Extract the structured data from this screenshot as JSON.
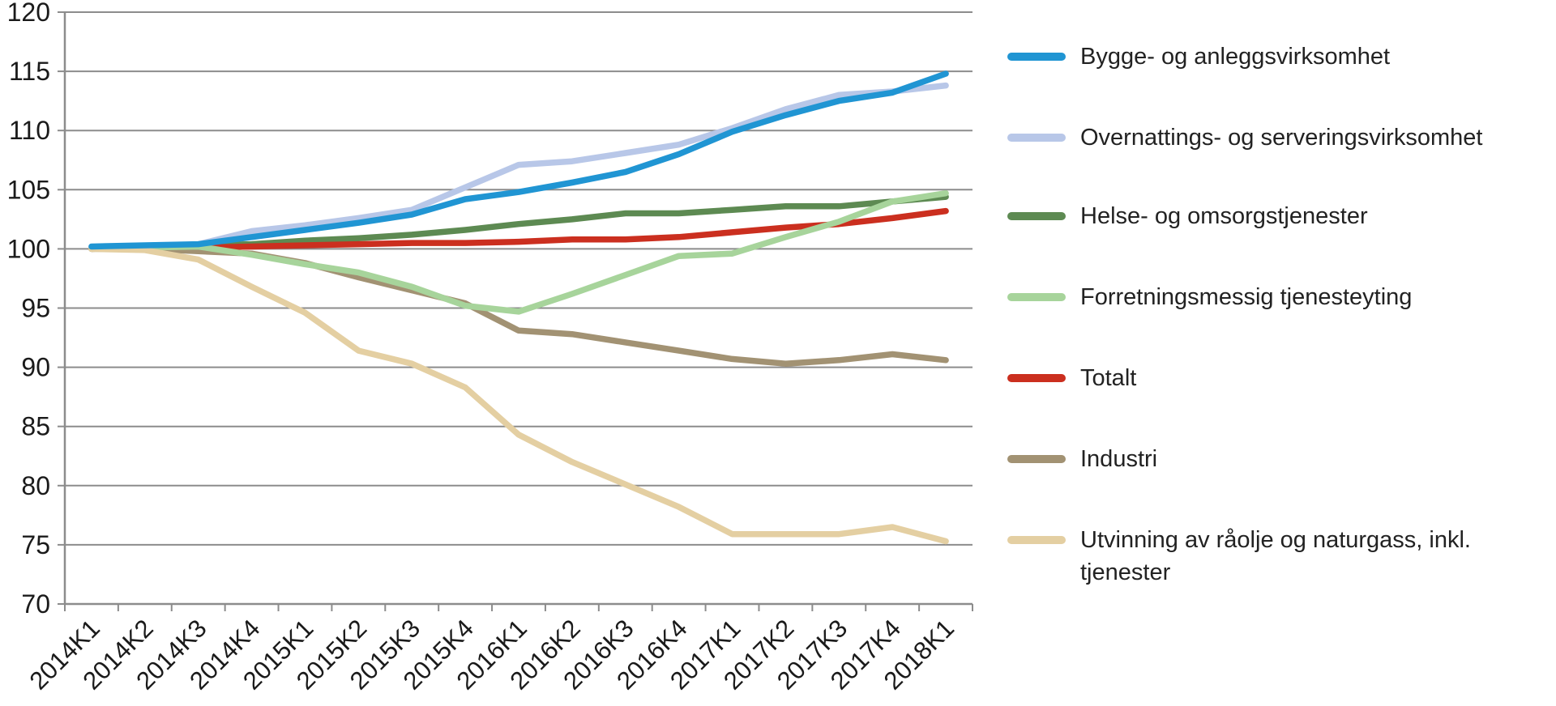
{
  "chart_data": {
    "type": "line",
    "title": "",
    "xlabel": "",
    "ylabel": "",
    "ylim": [
      70,
      120
    ],
    "y_ticks": [
      120,
      115,
      110,
      105,
      100,
      95,
      90,
      85,
      80,
      75,
      70
    ],
    "grid": true,
    "legend_position": "right",
    "categories": [
      "2014K1",
      "2014K2",
      "2014K3",
      "2014K4",
      "2015K1",
      "2015K2",
      "2015K3",
      "2015K4",
      "2016K1",
      "2016K2",
      "2016K3",
      "2016K4",
      "2017K1",
      "2017K2",
      "2017K3",
      "2017K4",
      "2018K1"
    ],
    "series": [
      {
        "id": "bygge",
        "name": "Bygge- og anleggsvirksomhet",
        "color": "#2095d3",
        "values": [
          100.2,
          100.3,
          100.4,
          101.0,
          101.6,
          102.2,
          102.9,
          104.2,
          104.8,
          105.6,
          106.5,
          108.0,
          109.9,
          111.3,
          112.5,
          113.2,
          114.8
        ]
      },
      {
        "id": "overnattings",
        "name": "Overnattings- og serveringsvirksomhet",
        "color": "#b8c7e8",
        "values": [
          100.1,
          100.2,
          100.4,
          101.5,
          102.0,
          102.6,
          103.3,
          105.2,
          107.1,
          107.4,
          108.1,
          108.8,
          110.2,
          111.8,
          113.0,
          113.3,
          113.8
        ]
      },
      {
        "id": "helse",
        "name": "Helse- og omsorgstjenester",
        "color": "#5d8a52",
        "values": [
          100.0,
          100.2,
          100.3,
          100.4,
          100.7,
          100.9,
          101.2,
          101.6,
          102.1,
          102.5,
          103.0,
          103.0,
          103.3,
          103.6,
          103.6,
          104.0,
          104.4
        ]
      },
      {
        "id": "forretningsmessig",
        "name": "Forretningsmessig tjenesteyting",
        "color": "#a7d49b",
        "values": [
          100.0,
          100.1,
          100.2,
          99.5,
          98.7,
          98.0,
          96.8,
          95.2,
          94.7,
          96.2,
          97.8,
          99.4,
          99.6,
          101.0,
          102.3,
          104.0,
          104.7
        ]
      },
      {
        "id": "totalt",
        "name": "Totalt",
        "color": "#cb2f1f",
        "values": [
          100.0,
          100.1,
          100.1,
          100.2,
          100.3,
          100.4,
          100.5,
          100.5,
          100.6,
          100.8,
          100.8,
          101.0,
          101.4,
          101.8,
          102.1,
          102.6,
          103.2
        ]
      },
      {
        "id": "industri",
        "name": "Industri",
        "color": "#a29273",
        "values": [
          100.0,
          100.0,
          99.8,
          99.6,
          98.8,
          97.6,
          96.5,
          95.4,
          93.1,
          92.8,
          92.1,
          91.4,
          90.7,
          90.3,
          90.6,
          91.1,
          90.6
        ]
      },
      {
        "id": "utvinning",
        "name": "Utvinning av råolje og naturgass, inkl. tjenester",
        "color": "#e4cfa2",
        "values": [
          100.0,
          99.9,
          99.1,
          96.8,
          94.6,
          91.4,
          90.3,
          88.3,
          84.3,
          82.0,
          80.1,
          78.2,
          75.9,
          75.9,
          75.9,
          76.5,
          75.3
        ]
      }
    ],
    "style": {
      "grid_color": "#8c8c8c",
      "axis_color": "#8c8c8c",
      "label_color": "#1a1a1a",
      "line_width": 7.5
    }
  }
}
